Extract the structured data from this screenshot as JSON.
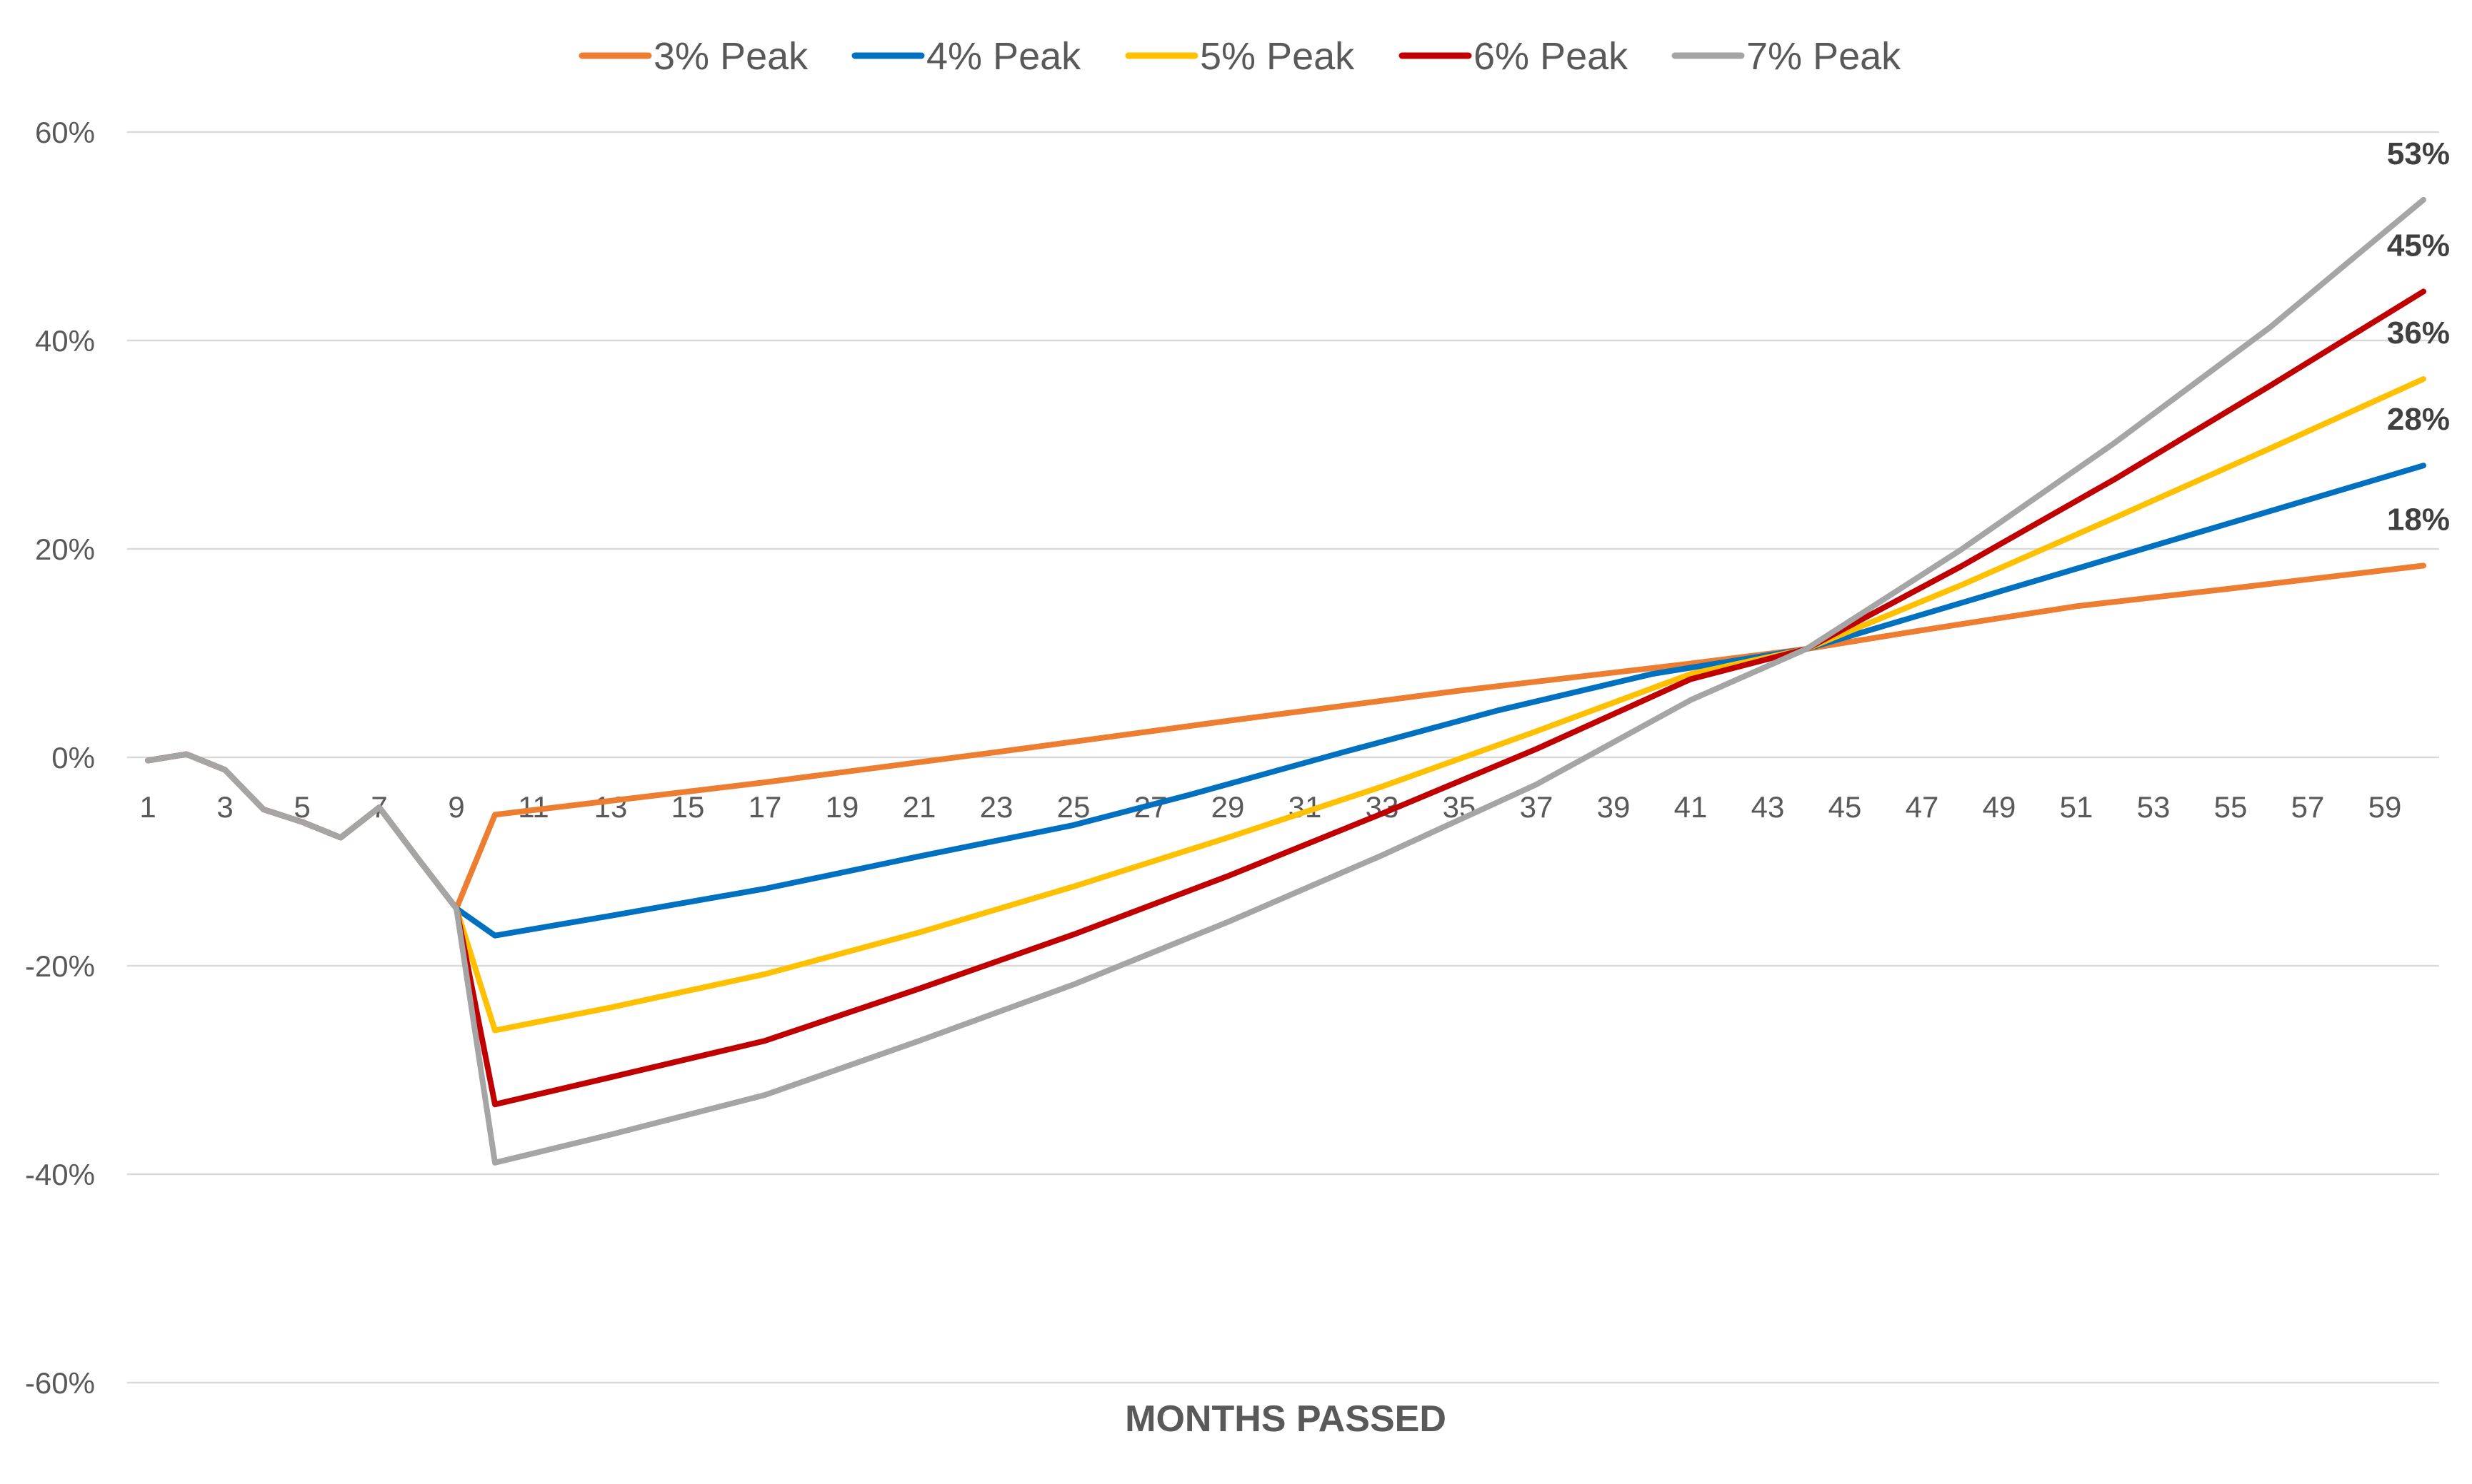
{
  "chart_data": {
    "type": "line",
    "title": "",
    "xlabel": "MONTHS PASSED",
    "ylabel": "",
    "ylim": [
      -0.6,
      0.6
    ],
    "yticks": [
      0.6,
      0.4,
      0.2,
      0,
      -0.2,
      -0.4,
      -0.6
    ],
    "ytick_labels": [
      "60%",
      "40%",
      "20%",
      "0%",
      "-20%",
      "-40%",
      "-60%"
    ],
    "x_range": [
      1,
      60
    ],
    "xtick_labels": [
      "1",
      "3",
      "5",
      "7",
      "9",
      "11",
      "13",
      "15",
      "17",
      "19",
      "21",
      "23",
      "25",
      "27",
      "29",
      "31",
      "33",
      "35",
      "37",
      "39",
      "41",
      "43",
      "45",
      "47",
      "49",
      "51",
      "53",
      "55",
      "57",
      "59"
    ],
    "grid": true,
    "legend_position": "top",
    "base_points": [
      [
        1,
        -0.003
      ],
      [
        2,
        0.003
      ],
      [
        3,
        -0.012
      ],
      [
        4,
        -0.05
      ],
      [
        5,
        -0.062
      ],
      [
        6,
        -0.077
      ],
      [
        7,
        -0.048
      ],
      [
        8,
        -0.097
      ],
      [
        9,
        -0.145
      ]
    ],
    "series": [
      {
        "name": "3% Peak",
        "color": "#ED7D31",
        "points": [
          [
            10,
            -0.055
          ],
          [
            17,
            -0.024
          ],
          [
            23,
            0.005
          ],
          [
            29,
            0.035
          ],
          [
            35,
            0.064
          ],
          [
            41,
            0.09
          ],
          [
            44,
            0.104
          ],
          [
            47,
            0.122
          ],
          [
            51,
            0.145
          ],
          [
            55,
            0.162
          ],
          [
            60,
            0.184
          ]
        ],
        "end_label": "18%"
      },
      {
        "name": "4% Peak",
        "color": "#0070C0",
        "points": [
          [
            10,
            -0.171
          ],
          [
            13,
            -0.152
          ],
          [
            17,
            -0.126
          ],
          [
            21,
            -0.095
          ],
          [
            25,
            -0.065
          ],
          [
            28,
            -0.036
          ],
          [
            32,
            0.005
          ],
          [
            36,
            0.045
          ],
          [
            40,
            0.08
          ],
          [
            44,
            0.104
          ],
          [
            48,
            0.148
          ],
          [
            52,
            0.192
          ],
          [
            56,
            0.236
          ],
          [
            60,
            0.28
          ]
        ],
        "end_label": "28%"
      },
      {
        "name": "5% Peak",
        "color": "#FFC000",
        "points": [
          [
            10,
            -0.262
          ],
          [
            13,
            -0.24
          ],
          [
            17,
            -0.208
          ],
          [
            21,
            -0.168
          ],
          [
            25,
            -0.124
          ],
          [
            29,
            -0.077
          ],
          [
            33,
            -0.028
          ],
          [
            37,
            0.025
          ],
          [
            41,
            0.08
          ],
          [
            44,
            0.104
          ],
          [
            48,
            0.165
          ],
          [
            52,
            0.23
          ],
          [
            56,
            0.296
          ],
          [
            60,
            0.363
          ]
        ],
        "end_label": "36%"
      },
      {
        "name": "6% Peak",
        "color": "#C00000",
        "points": [
          [
            10,
            -0.333
          ],
          [
            13,
            -0.307
          ],
          [
            17,
            -0.272
          ],
          [
            21,
            -0.222
          ],
          [
            25,
            -0.17
          ],
          [
            29,
            -0.114
          ],
          [
            33,
            -0.054
          ],
          [
            37,
            0.008
          ],
          [
            41,
            0.075
          ],
          [
            44,
            0.104
          ],
          [
            48,
            0.183
          ],
          [
            52,
            0.267
          ],
          [
            56,
            0.356
          ],
          [
            60,
            0.447
          ]
        ],
        "end_label": "45%"
      },
      {
        "name": "7% Peak",
        "color": "#A5A5A5",
        "points": [
          [
            10,
            -0.389
          ],
          [
            13,
            -0.362
          ],
          [
            17,
            -0.324
          ],
          [
            21,
            -0.272
          ],
          [
            25,
            -0.218
          ],
          [
            29,
            -0.158
          ],
          [
            33,
            -0.094
          ],
          [
            37,
            -0.026
          ],
          [
            41,
            0.055
          ],
          [
            44,
            0.104
          ],
          [
            48,
            0.199
          ],
          [
            52,
            0.302
          ],
          [
            56,
            0.412
          ],
          [
            60,
            0.535
          ]
        ],
        "end_label": "53%"
      }
    ]
  }
}
